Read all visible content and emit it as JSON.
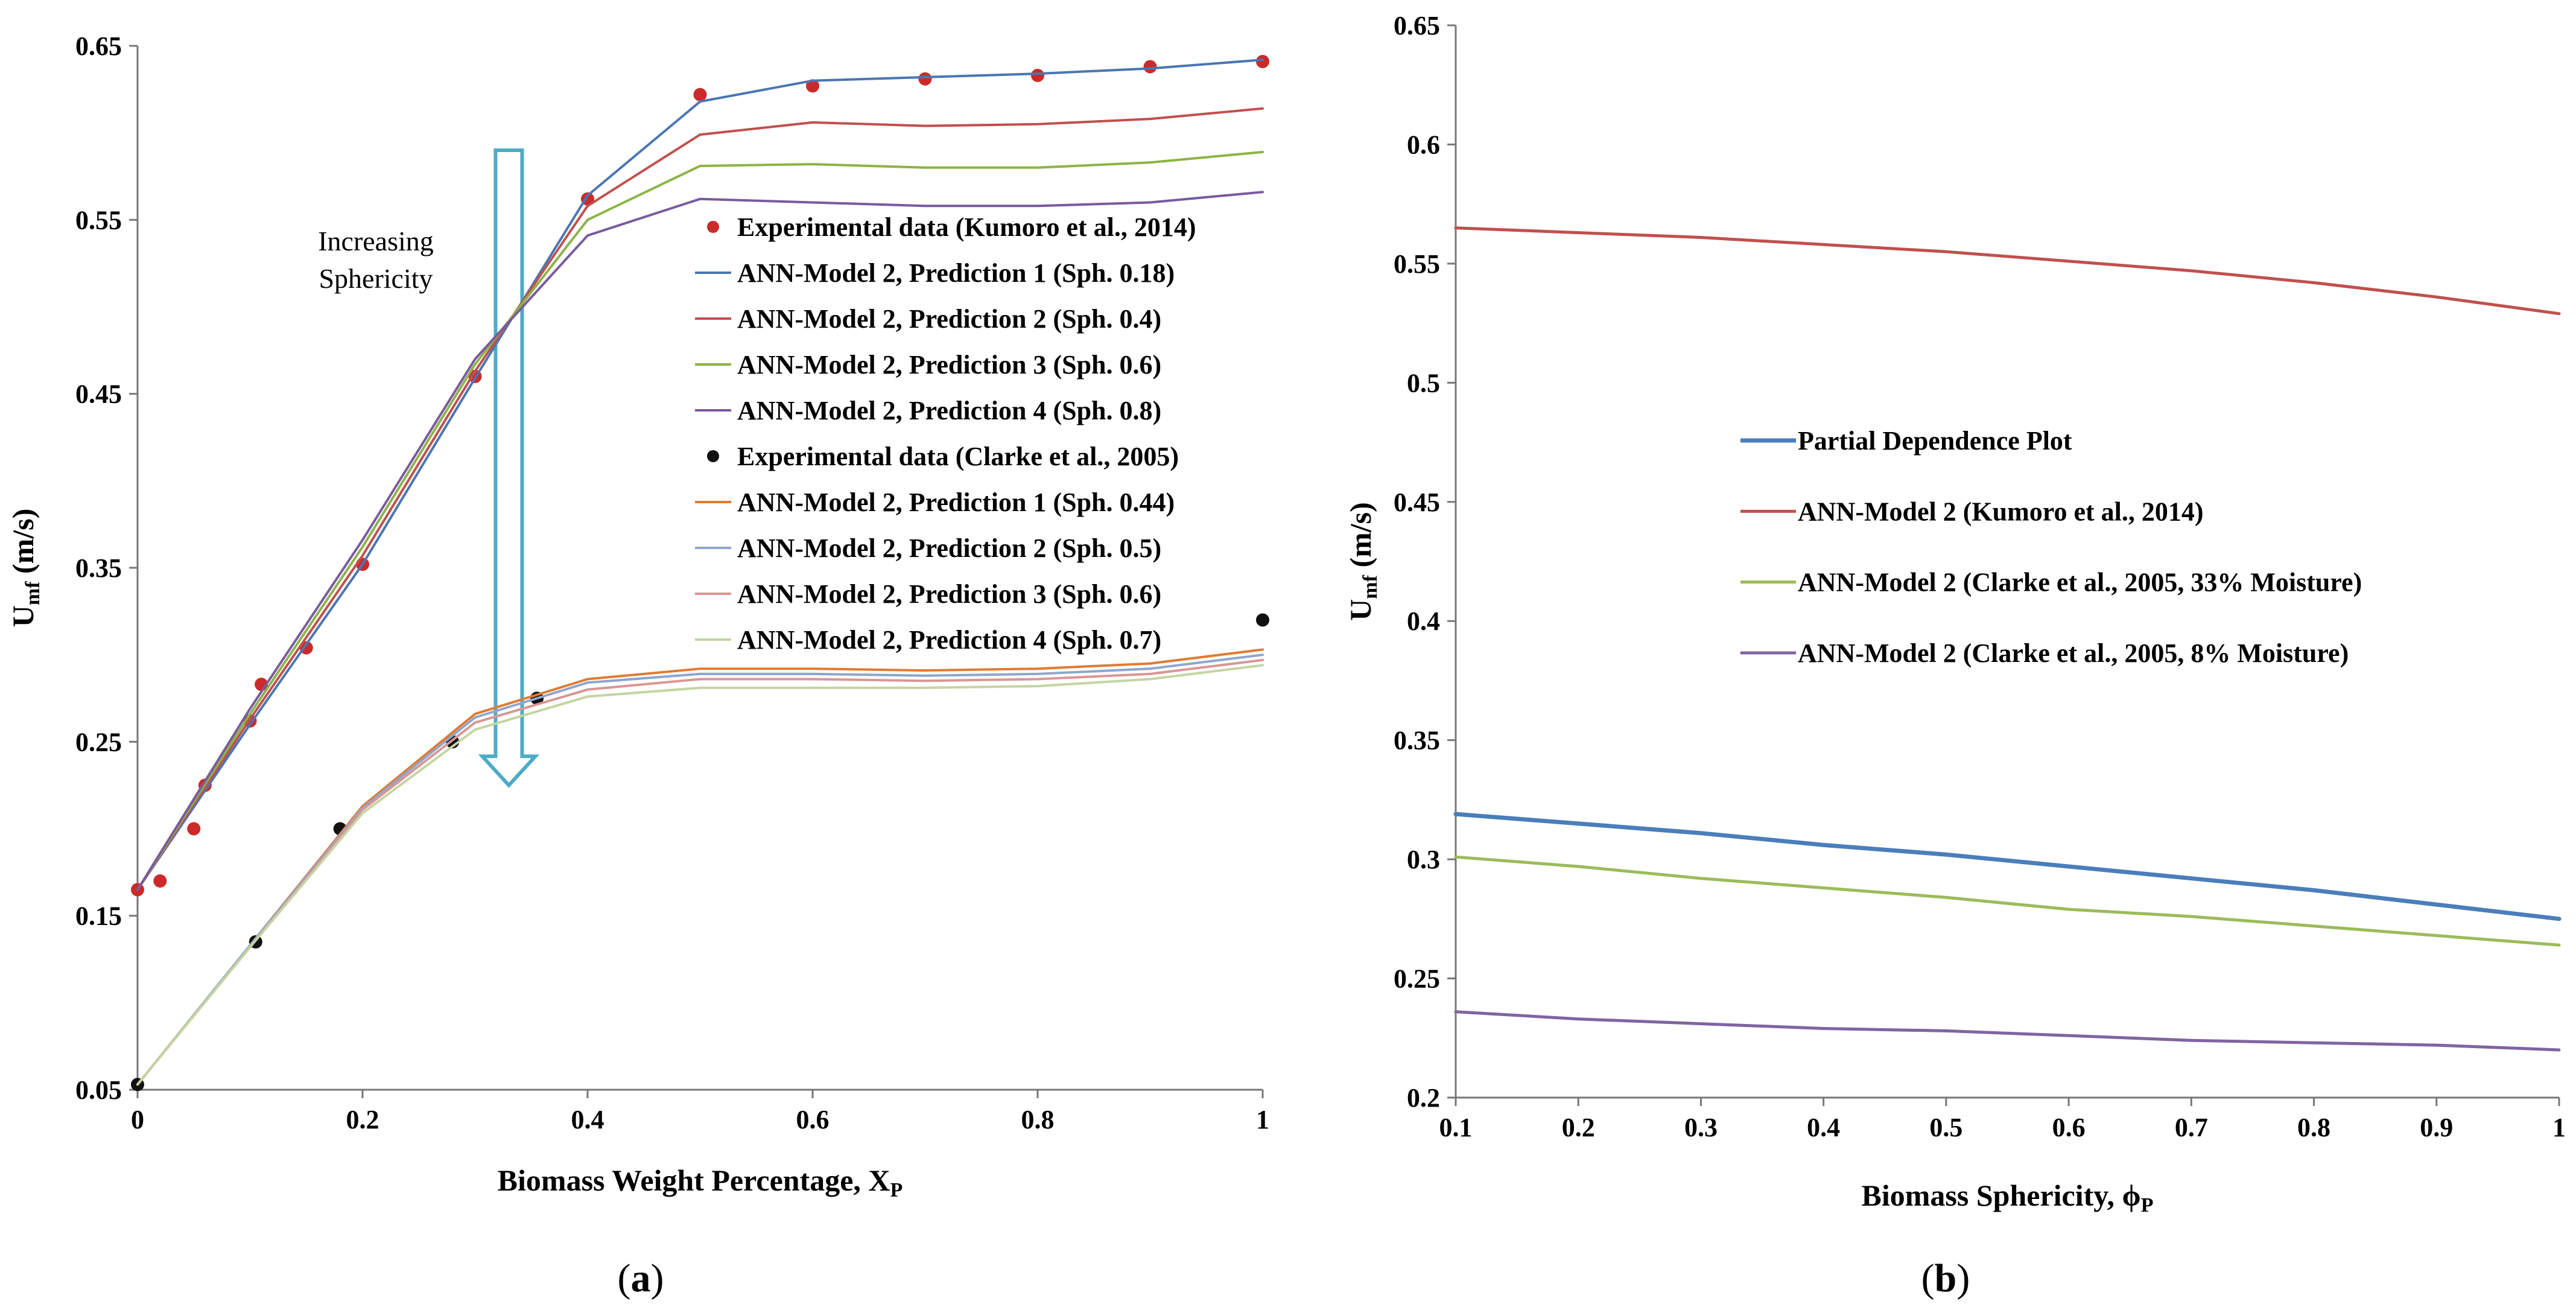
{
  "chart_data": [
    {
      "panel": "a",
      "type": "line",
      "panel_label": "a",
      "xlabel": "Biomass Weight Percentage, X",
      "xlabel_sub": "P",
      "ylabel": "U",
      "ylabel_sub": "mf",
      "ylabel_unit": " (m/s)",
      "xlim": [
        0,
        1
      ],
      "ylim": [
        0.05,
        0.65
      ],
      "xticks": [
        0,
        0.2,
        0.4,
        0.6,
        0.8,
        1
      ],
      "xtick_labels": [
        "0",
        "0.2",
        "0.4",
        "0.6",
        "0.8",
        "1"
      ],
      "yticks": [
        0.05,
        0.15,
        0.25,
        0.35,
        0.45,
        0.55,
        0.65
      ],
      "ytick_labels": [
        "0.05",
        "0.15",
        "0.25",
        "0.35",
        "0.45",
        "0.55",
        "0.65"
      ],
      "annotation": {
        "line1": "Increasing",
        "line2": "Sphericity",
        "arrow_from": 0.59,
        "arrow_to": 0.225,
        "arrow_x": 0.33
      },
      "legend_position": "center-right",
      "series": [
        {
          "name": "Experimental data (Kumoro et al., 2014)",
          "kind": "scatter",
          "color": "#cc2a2a",
          "x": [
            0,
            0.02,
            0.05,
            0.06,
            0.1,
            0.11,
            0.15,
            0.2,
            0.3,
            0.4,
            0.5,
            0.6,
            0.7,
            0.8,
            0.9,
            1
          ],
          "y": [
            0.165,
            0.17,
            0.2,
            0.225,
            0.262,
            0.283,
            0.304,
            0.352,
            0.46,
            0.562,
            0.622,
            0.627,
            0.631,
            0.633,
            0.638,
            0.641
          ]
        },
        {
          "name": "ANN-Model 2, Prediction 1 (Sph. 0.18)",
          "kind": "line",
          "color": "#4a76b4",
          "x": [
            0,
            0.1,
            0.2,
            0.3,
            0.4,
            0.5,
            0.6,
            0.7,
            0.8,
            0.9,
            1
          ],
          "y": [
            0.165,
            0.26,
            0.352,
            0.459,
            0.564,
            0.618,
            0.63,
            0.632,
            0.634,
            0.637,
            0.642
          ]
        },
        {
          "name": "ANN-Model 2, Prediction 2 (Sph. 0.4)",
          "kind": "line",
          "color": "#c0504d",
          "x": [
            0,
            0.1,
            0.2,
            0.3,
            0.4,
            0.5,
            0.6,
            0.7,
            0.8,
            0.9,
            1
          ],
          "y": [
            0.165,
            0.263,
            0.357,
            0.463,
            0.558,
            0.599,
            0.606,
            0.604,
            0.605,
            0.608,
            0.614
          ]
        },
        {
          "name": "ANN-Model 2, Prediction 3 (Sph. 0.6)",
          "kind": "line",
          "color": "#8bb446",
          "x": [
            0,
            0.1,
            0.2,
            0.3,
            0.4,
            0.5,
            0.6,
            0.7,
            0.8,
            0.9,
            1
          ],
          "y": [
            0.165,
            0.266,
            0.362,
            0.467,
            0.55,
            0.581,
            0.582,
            0.58,
            0.58,
            0.583,
            0.589
          ]
        },
        {
          "name": "ANN-Model 2, Prediction 4 (Sph. 0.8)",
          "kind": "line",
          "color": "#7a5a9e",
          "x": [
            0,
            0.1,
            0.2,
            0.3,
            0.4,
            0.5,
            0.6,
            0.7,
            0.8,
            0.9,
            1
          ],
          "y": [
            0.165,
            0.269,
            0.366,
            0.47,
            0.541,
            0.562,
            0.56,
            0.558,
            0.558,
            0.56,
            0.566
          ]
        },
        {
          "name": "Experimental data (Clarke et al., 2005)",
          "kind": "scatter",
          "color": "#111111",
          "x": [
            0,
            0.105,
            0.18,
            0.28,
            0.355,
            1
          ],
          "y": [
            0.053,
            0.135,
            0.2,
            0.25,
            0.275,
            0.32
          ]
        },
        {
          "name": "ANN-Model 2, Prediction 1 (Sph. 0.44)",
          "kind": "line",
          "color": "#e07b32",
          "x": [
            0,
            0.1,
            0.2,
            0.3,
            0.4,
            0.5,
            0.6,
            0.7,
            0.8,
            0.9,
            1
          ],
          "y": [
            0.053,
            0.133,
            0.213,
            0.266,
            0.286,
            0.292,
            0.292,
            0.291,
            0.292,
            0.295,
            0.303
          ]
        },
        {
          "name": "ANN-Model 2, Prediction 2 (Sph. 0.5)",
          "kind": "line",
          "color": "#8ea6cc",
          "x": [
            0,
            0.1,
            0.2,
            0.3,
            0.4,
            0.5,
            0.6,
            0.7,
            0.8,
            0.9,
            1
          ],
          "y": [
            0.053,
            0.133,
            0.212,
            0.264,
            0.284,
            0.289,
            0.289,
            0.288,
            0.289,
            0.292,
            0.3
          ]
        },
        {
          "name": "ANN-Model 2, Prediction 3 (Sph. 0.6)",
          "kind": "line",
          "color": "#d99694",
          "x": [
            0,
            0.1,
            0.2,
            0.3,
            0.4,
            0.5,
            0.6,
            0.7,
            0.8,
            0.9,
            1
          ],
          "y": [
            0.053,
            0.132,
            0.211,
            0.261,
            0.28,
            0.286,
            0.286,
            0.285,
            0.286,
            0.289,
            0.297
          ]
        },
        {
          "name": "ANN-Model 2, Prediction 4 (Sph. 0.7)",
          "kind": "line",
          "color": "#c4d5a2",
          "x": [
            0,
            0.1,
            0.2,
            0.3,
            0.4,
            0.5,
            0.6,
            0.7,
            0.8,
            0.9,
            1
          ],
          "y": [
            0.053,
            0.132,
            0.209,
            0.257,
            0.276,
            0.281,
            0.281,
            0.281,
            0.282,
            0.286,
            0.294
          ]
        }
      ]
    },
    {
      "panel": "b",
      "type": "line",
      "panel_label": "b",
      "xlabel": "Biomass Sphericity, ϕ",
      "xlabel_sub": "P",
      "ylabel": "U",
      "ylabel_sub": "mf",
      "ylabel_unit": " (m/s)",
      "xlim": [
        0.1,
        1
      ],
      "ylim": [
        0.2,
        0.65
      ],
      "xticks": [
        0.1,
        0.2,
        0.3,
        0.4,
        0.5,
        0.6,
        0.7,
        0.8,
        0.9,
        1
      ],
      "xtick_labels": [
        "0.1",
        "0.2",
        "0.3",
        "0.4",
        "0.5",
        "0.6",
        "0.7",
        "0.8",
        "0.9",
        "1"
      ],
      "yticks": [
        0.2,
        0.25,
        0.3,
        0.35,
        0.4,
        0.45,
        0.5,
        0.55,
        0.6,
        0.65
      ],
      "ytick_labels": [
        "0.2",
        "0.25",
        "0.3",
        "0.35",
        "0.4",
        "0.45",
        "0.5",
        "0.55",
        "0.6",
        "0.65"
      ],
      "legend_position": "center-left",
      "series": [
        {
          "name": "Partial Dependence Plot",
          "kind": "line",
          "color": "#4a7ebb",
          "width": 7,
          "x": [
            0.1,
            0.2,
            0.3,
            0.4,
            0.5,
            0.6,
            0.7,
            0.8,
            0.9,
            1
          ],
          "y": [
            0.319,
            0.315,
            0.311,
            0.306,
            0.302,
            0.297,
            0.292,
            0.287,
            0.281,
            0.275
          ]
        },
        {
          "name": "ANN-Model 2 (Kumoro et al., 2014)",
          "kind": "line",
          "color": "#c0504d",
          "width": 5,
          "x": [
            0.1,
            0.2,
            0.3,
            0.4,
            0.5,
            0.6,
            0.7,
            0.8,
            0.9,
            1
          ],
          "y": [
            0.565,
            0.563,
            0.561,
            0.558,
            0.555,
            0.551,
            0.547,
            0.542,
            0.536,
            0.529
          ]
        },
        {
          "name": "ANN-Model 2 (Clarke et al., 2005, 33% Moisture)",
          "kind": "line",
          "color": "#9bbb59",
          "width": 5,
          "x": [
            0.1,
            0.2,
            0.3,
            0.4,
            0.5,
            0.6,
            0.7,
            0.8,
            0.9,
            1
          ],
          "y": [
            0.301,
            0.297,
            0.292,
            0.288,
            0.284,
            0.279,
            0.276,
            0.272,
            0.268,
            0.264
          ]
        },
        {
          "name": "ANN-Model 2 (Clarke et al., 2005, 8% Moisture)",
          "kind": "line",
          "color": "#8064a2",
          "width": 5,
          "x": [
            0.1,
            0.2,
            0.3,
            0.4,
            0.5,
            0.6,
            0.7,
            0.8,
            0.9,
            1
          ],
          "y": [
            0.236,
            0.233,
            0.231,
            0.229,
            0.228,
            0.226,
            0.224,
            0.223,
            0.222,
            0.22
          ]
        }
      ]
    }
  ]
}
